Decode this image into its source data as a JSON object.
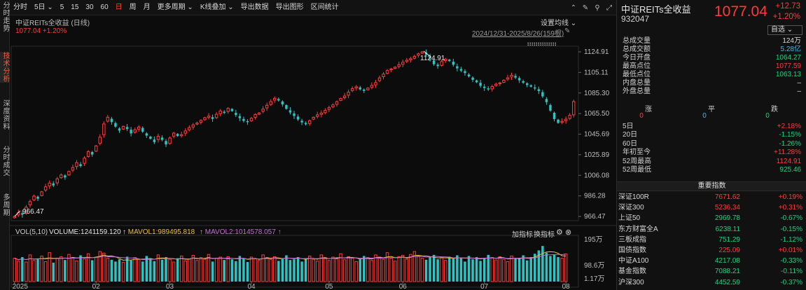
{
  "leftnav": [
    {
      "label": "分时走势",
      "active": false
    },
    {
      "label": "技术分析",
      "active": true
    },
    {
      "label": "深度资料",
      "active": false
    },
    {
      "label": "分时成交",
      "active": false
    },
    {
      "label": "多周期",
      "active": false
    }
  ],
  "toolbar": {
    "items": [
      {
        "label": "分时",
        "active": false
      },
      {
        "label": "5日 ⌄",
        "active": false
      },
      {
        "label": "5",
        "active": false
      },
      {
        "label": "15",
        "active": false
      },
      {
        "label": "30",
        "active": false
      },
      {
        "label": "60",
        "active": false
      },
      {
        "label": "日",
        "active": true
      },
      {
        "label": "周",
        "active": false
      },
      {
        "label": "月",
        "active": false
      },
      {
        "label": "更多周期 ⌄",
        "active": false
      },
      {
        "label": "K线叠加 ⌄",
        "active": false
      },
      {
        "label": "导出数据",
        "active": false
      },
      {
        "label": "导出图形",
        "active": false
      },
      {
        "label": "区间统计",
        "active": false
      }
    ],
    "icons": [
      "collapse-icon",
      "brush-icon",
      "pin-icon",
      "expand-icon"
    ]
  },
  "chart": {
    "title": "中证REITs全收益 (日线)",
    "price_line": "1077.04  +1.20%",
    "ma_settings": "设置均线 ⌄",
    "range_label": "2024/12/31-2025/8/26(159根)",
    "markers": "↕↕↕↕↕↕↕↕↕↕↕↕↕↕",
    "high_label": "1124.91",
    "low_label": "966.47",
    "vol_header": {
      "name": "VOL(5,10)",
      "volume": "VOLUME:1241159.120",
      "mavol1": "MAVOL1:989495.818",
      "mavol2": "MAVOL2:1014578.057",
      "add": "加指标",
      "switch": "换指标"
    }
  },
  "chart_data": {
    "type": "candlestick",
    "y_ticks": [
      1124.91,
      1105.11,
      1085.3,
      1065.5,
      1045.69,
      1025.89,
      1006.08,
      986.28,
      966.47
    ],
    "y_range": [
      966.47,
      1124.91
    ],
    "x_ticks": [
      "2025",
      "02",
      "03",
      "04",
      "05",
      "06",
      "07",
      "08"
    ],
    "vol_ticks": [
      "195万",
      "98.6万",
      "1.17万"
    ],
    "vol_range": [
      0,
      1950000
    ],
    "colors": {
      "up": "#ff3b3b",
      "down": "#2ec4c4",
      "ma_white": "#e8e8e8",
      "ma_yellow": "#e8c23a",
      "ma_purple": "#c36fd6",
      "ma_green": "#3bd36b"
    },
    "closes": [
      966.5,
      970.1,
      968.2,
      975.4,
      980.8,
      986.0,
      983.5,
      990.2,
      995.0,
      998.6,
      996.3,
      1002.7,
      1006.4,
      1004.0,
      1009.8,
      1013.5,
      1018.2,
      1015.0,
      1022.6,
      1028.9,
      1026.1,
      1034.4,
      1042.8,
      1055.5,
      1062.0,
      1057.3,
      1052.9,
      1049.1,
      1053.2,
      1050.6,
      1046.4,
      1049.8,
      1052.5,
      1048.0,
      1044.3,
      1041.2,
      1038.0,
      1043.6,
      1040.2,
      1035.8,
      1042.0,
      1046.7,
      1043.9,
      1045.2,
      1048.8,
      1052.0,
      1054.6,
      1056.3,
      1058.9,
      1061.5,
      1063.0,
      1060.4,
      1064.8,
      1068.0,
      1066.2,
      1070.5,
      1067.9,
      1064.1,
      1061.0,
      1058.4,
      1057.2,
      1060.9,
      1064.6,
      1066.1,
      1069.8,
      1073.5,
      1077.0,
      1080.2,
      1078.1,
      1074.3,
      1070.0,
      1066.5,
      1063.2,
      1059.8,
      1057.0,
      1055.2,
      1058.6,
      1061.9,
      1064.3,
      1066.0,
      1068.5,
      1071.2,
      1073.8,
      1076.9,
      1080.0,
      1082.4,
      1086.1,
      1089.5,
      1091.2,
      1088.8,
      1087.4,
      1090.0,
      1092.6,
      1095.3,
      1099.8,
      1103.5,
      1106.9,
      1108.4,
      1110.2,
      1112.6,
      1114.9,
      1116.8,
      1118.3,
      1120.6,
      1123.0,
      1124.9,
      1122.1,
      1118.5,
      1113.0,
      1111.2,
      1115.6,
      1117.9,
      1116.0,
      1112.5,
      1109.0,
      1106.8,
      1104.5,
      1101.3,
      1098.0,
      1095.6,
      1092.2,
      1090.1,
      1088.7,
      1091.5,
      1093.8,
      1095.0,
      1097.6,
      1099.9,
      1102.3,
      1100.1,
      1097.5,
      1095.2,
      1093.0,
      1091.4,
      1089.6,
      1087.2,
      1082.0,
      1076.5,
      1068.3,
      1060.2,
      1056.5,
      1058.0,
      1060.1,
      1063.8,
      1077.04
    ],
    "volumes": [
      1.05,
      0.92,
      1.1,
      0.88,
      1.2,
      0.95,
      1.0,
      1.15,
      0.9,
      1.3,
      0.85,
      1.05,
      1.12,
      0.97,
      1.22,
      1.08,
      0.93,
      1.18,
      1.02,
      1.25,
      0.96,
      1.1,
      1.35,
      1.28,
      1.05,
      0.98,
      0.9,
      1.0,
      0.87,
      1.12,
      0.95,
      1.08,
      1.0,
      0.9,
      1.15,
      1.05,
      0.92,
      1.2,
      0.98,
      1.1,
      1.0,
      0.88,
      1.05,
      1.15,
      0.93,
      1.02,
      1.18,
      0.95,
      1.08,
      1.0,
      1.22,
      0.9,
      1.05,
      1.1,
      0.97,
      1.12,
      1.0,
      0.92,
      1.15,
      1.05,
      0.88,
      1.1,
      1.02,
      0.95,
      1.2,
      1.08,
      1.0,
      1.12,
      0.93,
      1.05,
      1.18,
      0.97,
      1.0,
      1.1,
      0.9,
      1.05,
      1.15,
      1.0,
      0.92,
      1.2,
      1.08,
      0.95,
      1.1,
      1.02,
      1.25,
      0.98,
      1.12,
      1.05,
      0.9,
      1.0,
      1.15,
      1.08,
      0.95,
      1.2,
      1.1,
      1.0,
      1.3,
      1.05,
      0.92,
      1.12,
      1.18,
      1.0,
      1.22,
      1.35,
      1.15,
      1.05,
      0.98,
      1.1,
      1.2,
      1.0,
      1.08,
      0.95,
      1.12,
      1.02,
      1.18,
      1.05,
      0.9,
      1.15,
      1.0,
      1.1,
      0.93,
      1.05,
      1.2,
      1.08,
      0.97,
      1.12,
      1.0,
      0.9,
      1.15,
      1.05,
      1.02,
      1.18,
      0.95,
      1.1,
      1.25,
      1.4,
      1.6,
      1.3,
      1.15,
      1.2,
      1.1,
      1.05,
      1.24
    ]
  },
  "right": {
    "name": "中证REITs全收益",
    "code": "932047",
    "price": "1077.04",
    "change": "+12.73",
    "pct": "+1.20%",
    "selfsel": "自选 ⌄",
    "stats": [
      {
        "k": "总成交量",
        "v": "124万",
        "c": "c-white"
      },
      {
        "k": "总成交额",
        "v": "5.28亿",
        "c": "c-cyan"
      },
      {
        "k": "今日开盘",
        "v": "1064.27",
        "c": "c-green"
      },
      {
        "k": "最高点位",
        "v": "1077.59",
        "c": "c-red"
      },
      {
        "k": "最低点位",
        "v": "1063.13",
        "c": "c-green"
      },
      {
        "k": "内盘总量",
        "v": "–",
        "c": "c-white"
      },
      {
        "k": "外盘总量",
        "v": "–",
        "c": "c-white"
      }
    ],
    "ud_labels": [
      "涨",
      "平",
      "跌"
    ],
    "ud_values": [
      "0",
      "0",
      "0"
    ],
    "periods": [
      {
        "k": "5日",
        "v": "+2.18%",
        "c": "c-red"
      },
      {
        "k": "20日",
        "v": "-1.15%",
        "c": "c-green"
      },
      {
        "k": "60日",
        "v": "-1.26%",
        "c": "c-green"
      },
      {
        "k": "年初至今",
        "v": "+11.28%",
        "c": "c-red"
      },
      {
        "k": "52周最高",
        "v": "1124.91",
        "c": "c-red"
      },
      {
        "k": "52周最低",
        "v": "925.46",
        "c": "c-green"
      }
    ],
    "section_title": "重要指数",
    "indices": [
      {
        "name": "深证100R",
        "price": "7671.62",
        "chg": "+0.19%",
        "c": "c-red"
      },
      {
        "name": "深证300",
        "price": "5236.34",
        "chg": "+0.31%",
        "c": "c-red"
      },
      {
        "name": "上证50",
        "price": "2969.78",
        "chg": "-0.67%",
        "c": "c-green"
      },
      {
        "name": "东方财富全A",
        "price": "6238.11",
        "chg": "-0.15%",
        "c": "c-green"
      },
      {
        "name": "三板成指",
        "price": "751.29",
        "chg": "-1.12%",
        "c": "c-green"
      },
      {
        "name": "国债指数",
        "price": "225.09",
        "chg": "+0.01%",
        "c": "c-red"
      },
      {
        "name": "中证A100",
        "price": "4217.08",
        "chg": "-0.33%",
        "c": "c-green"
      },
      {
        "name": "基金指数",
        "price": "7088.21",
        "chg": "-0.11%",
        "c": "c-green"
      },
      {
        "name": "沪深300",
        "price": "4452.59",
        "chg": "-0.37%",
        "c": "c-green"
      }
    ]
  }
}
